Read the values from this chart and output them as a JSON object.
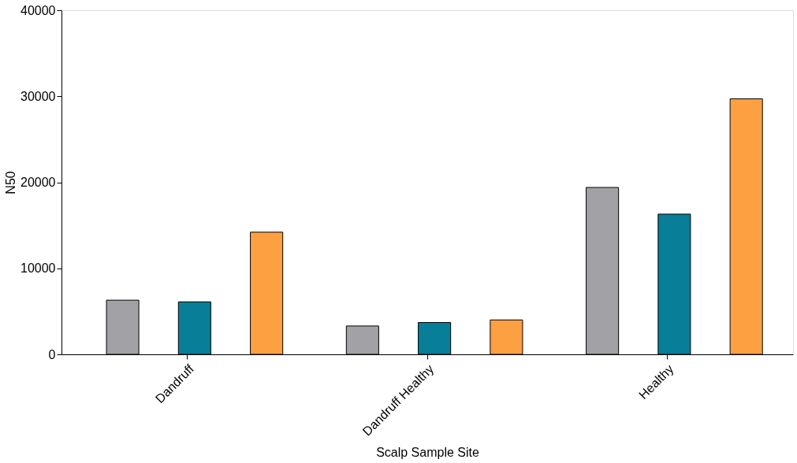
{
  "chart_data": {
    "type": "bar",
    "xlabel": "Scalp Sample Site",
    "ylabel": "N50",
    "categories": [
      "Dandruff",
      "Dandruff Healthy",
      "Healthy"
    ],
    "series": [
      {
        "color": "#a2a1a6",
        "values": [
          6300,
          3300,
          19400
        ]
      },
      {
        "color": "#087e99",
        "values": [
          6100,
          3700,
          16300
        ]
      },
      {
        "color": "#fda042",
        "values": [
          14200,
          4000,
          29700
        ]
      }
    ],
    "ylim": [
      0,
      40000
    ],
    "yticks": [
      0,
      10000,
      20000,
      30000,
      40000
    ],
    "grid": false
  }
}
